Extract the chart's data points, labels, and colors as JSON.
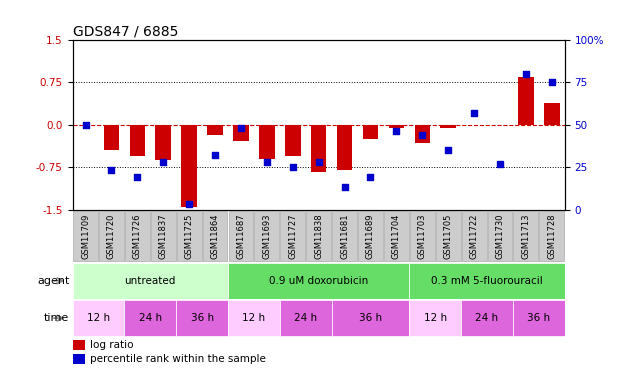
{
  "title": "GDS847 / 6885",
  "samples": [
    "GSM11709",
    "GSM11720",
    "GSM11726",
    "GSM11837",
    "GSM11725",
    "GSM11864",
    "GSM11687",
    "GSM11693",
    "GSM11727",
    "GSM11838",
    "GSM11681",
    "GSM11689",
    "GSM11704",
    "GSM11703",
    "GSM11705",
    "GSM11722",
    "GSM11730",
    "GSM11713",
    "GSM11728"
  ],
  "log_ratio": [
    0.0,
    -0.45,
    -0.55,
    -0.62,
    -1.45,
    -0.18,
    -0.28,
    -0.6,
    -0.55,
    -0.83,
    -0.8,
    -0.25,
    -0.06,
    -0.32,
    -0.06,
    0.0,
    0.0,
    0.85,
    0.38
  ],
  "percentile_rank": [
    50,
    23,
    19,
    28,
    3,
    32,
    48,
    28,
    25,
    28,
    13,
    19,
    46,
    44,
    35,
    57,
    27,
    80,
    75
  ],
  "bar_color": "#cc0000",
  "dot_color": "#0000cc",
  "ylim": [
    -1.5,
    1.5
  ],
  "yticks_left": [
    -1.5,
    -0.75,
    0.0,
    0.75,
    1.5
  ],
  "yticks_right": [
    0,
    25,
    50,
    75,
    100
  ],
  "agent_groups": [
    {
      "label": "untreated",
      "start": 0,
      "end": 6,
      "color": "#ccffcc"
    },
    {
      "label": "0.9 uM doxorubicin",
      "start": 6,
      "end": 13,
      "color": "#66dd66"
    },
    {
      "label": "0.3 mM 5-fluorouracil",
      "start": 13,
      "end": 19,
      "color": "#66dd66"
    }
  ],
  "time_groups": [
    {
      "label": "12 h",
      "start": 0,
      "end": 2,
      "color": "#ffccff"
    },
    {
      "label": "24 h",
      "start": 2,
      "end": 4,
      "color": "#dd66dd"
    },
    {
      "label": "36 h",
      "start": 4,
      "end": 6,
      "color": "#dd66dd"
    },
    {
      "label": "12 h",
      "start": 6,
      "end": 8,
      "color": "#ffccff"
    },
    {
      "label": "24 h",
      "start": 8,
      "end": 10,
      "color": "#dd66dd"
    },
    {
      "label": "36 h",
      "start": 10,
      "end": 13,
      "color": "#dd66dd"
    },
    {
      "label": "12 h",
      "start": 13,
      "end": 15,
      "color": "#ffccff"
    },
    {
      "label": "24 h",
      "start": 15,
      "end": 17,
      "color": "#dd66dd"
    },
    {
      "label": "36 h",
      "start": 17,
      "end": 19,
      "color": "#dd66dd"
    }
  ],
  "sample_box_color": "#cccccc",
  "sample_box_edge": "#aaaaaa",
  "legend_items": [
    {
      "label": "log ratio",
      "color": "#cc0000"
    },
    {
      "label": "percentile rank within the sample",
      "color": "#0000cc"
    }
  ],
  "bar_width": 0.6,
  "title_fontsize": 10,
  "tick_fontsize": 7.5,
  "sample_fontsize": 6,
  "row_label_fontsize": 8
}
